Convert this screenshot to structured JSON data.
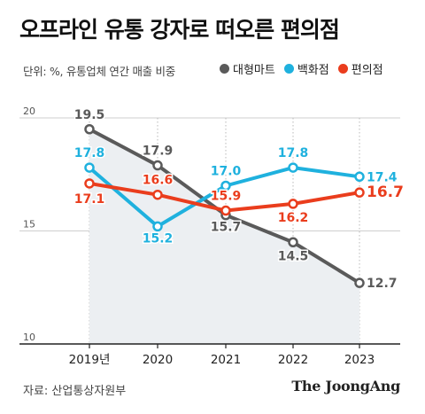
{
  "header": {
    "title": "오프라인 유통 강자로 떠오른 편의점",
    "subtitle": "단위: %, 유통업체 연간 매출 비중"
  },
  "legend": [
    {
      "label": "대형마트",
      "color": "#5a5a5a"
    },
    {
      "label": "백화점",
      "color": "#1fb1de"
    },
    {
      "label": "편의점",
      "color": "#ea3d1d"
    }
  ],
  "footer": {
    "source": "자료: 산업통상자원부",
    "brand": "The JoongAng"
  },
  "chart_data": {
    "type": "line",
    "categories": [
      "2019년",
      "2020",
      "2021",
      "2022",
      "2023"
    ],
    "ylim": [
      10,
      20
    ],
    "yticks": [
      "20",
      "15",
      "10"
    ],
    "grid": true,
    "legend_position": "top",
    "series": [
      {
        "name": "대형마트",
        "color": "#5a5a5a",
        "values": [
          19.5,
          17.9,
          15.7,
          14.5,
          12.7
        ],
        "labels": [
          "19.5",
          "17.9",
          "15.7",
          "14.5",
          "12.7"
        ]
      },
      {
        "name": "백화점",
        "color": "#1fb1de",
        "values": [
          17.8,
          15.2,
          17.0,
          17.8,
          17.4
        ],
        "labels": [
          "17.8",
          "15.2",
          "17.0",
          "17.8",
          "17.4"
        ]
      },
      {
        "name": "편의점",
        "color": "#ea3d1d",
        "values": [
          17.1,
          16.6,
          15.9,
          16.2,
          16.7
        ],
        "labels": [
          "17.1",
          "16.6",
          "15.9",
          "16.2",
          "16.7"
        ]
      }
    ]
  }
}
